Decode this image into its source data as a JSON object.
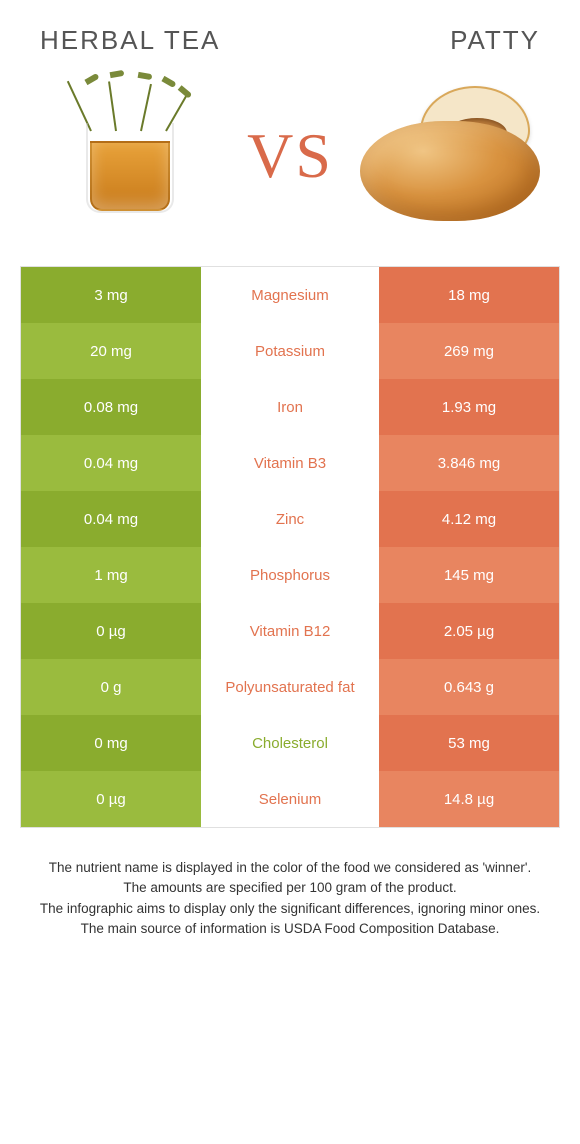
{
  "header": {
    "left_title": "Herbal tea",
    "right_title": "Patty"
  },
  "vs_label": "VS",
  "colors": {
    "left_base": "#8aac2e",
    "left_alt": "#9abb3e",
    "right_base": "#e2734f",
    "right_alt": "#e88560",
    "mid_left": "#8aac2e",
    "mid_right": "#e2734f"
  },
  "rows": [
    {
      "left": "3 mg",
      "label": "Magnesium",
      "right": "18 mg",
      "winner": "right"
    },
    {
      "left": "20 mg",
      "label": "Potassium",
      "right": "269 mg",
      "winner": "right"
    },
    {
      "left": "0.08 mg",
      "label": "Iron",
      "right": "1.93 mg",
      "winner": "right"
    },
    {
      "left": "0.04 mg",
      "label": "Vitamin B3",
      "right": "3.846 mg",
      "winner": "right"
    },
    {
      "left": "0.04 mg",
      "label": "Zinc",
      "right": "4.12 mg",
      "winner": "right"
    },
    {
      "left": "1 mg",
      "label": "Phosphorus",
      "right": "145 mg",
      "winner": "right"
    },
    {
      "left": "0 µg",
      "label": "Vitamin B12",
      "right": "2.05 µg",
      "winner": "right"
    },
    {
      "left": "0 g",
      "label": "Polyunsaturated fat",
      "right": "0.643 g",
      "winner": "right"
    },
    {
      "left": "0 mg",
      "label": "Cholesterol",
      "right": "53 mg",
      "winner": "left"
    },
    {
      "left": "0 µg",
      "label": "Selenium",
      "right": "14.8 µg",
      "winner": "right"
    }
  ],
  "footnote": {
    "l1": "The nutrient name is displayed in the color of the food we considered as 'winner'.",
    "l2": "The amounts are specified per 100 gram of the product.",
    "l3": "The infographic aims to display only the significant differences, ignoring minor ones.",
    "l4": "The main source of information is USDA Food Composition Database."
  }
}
